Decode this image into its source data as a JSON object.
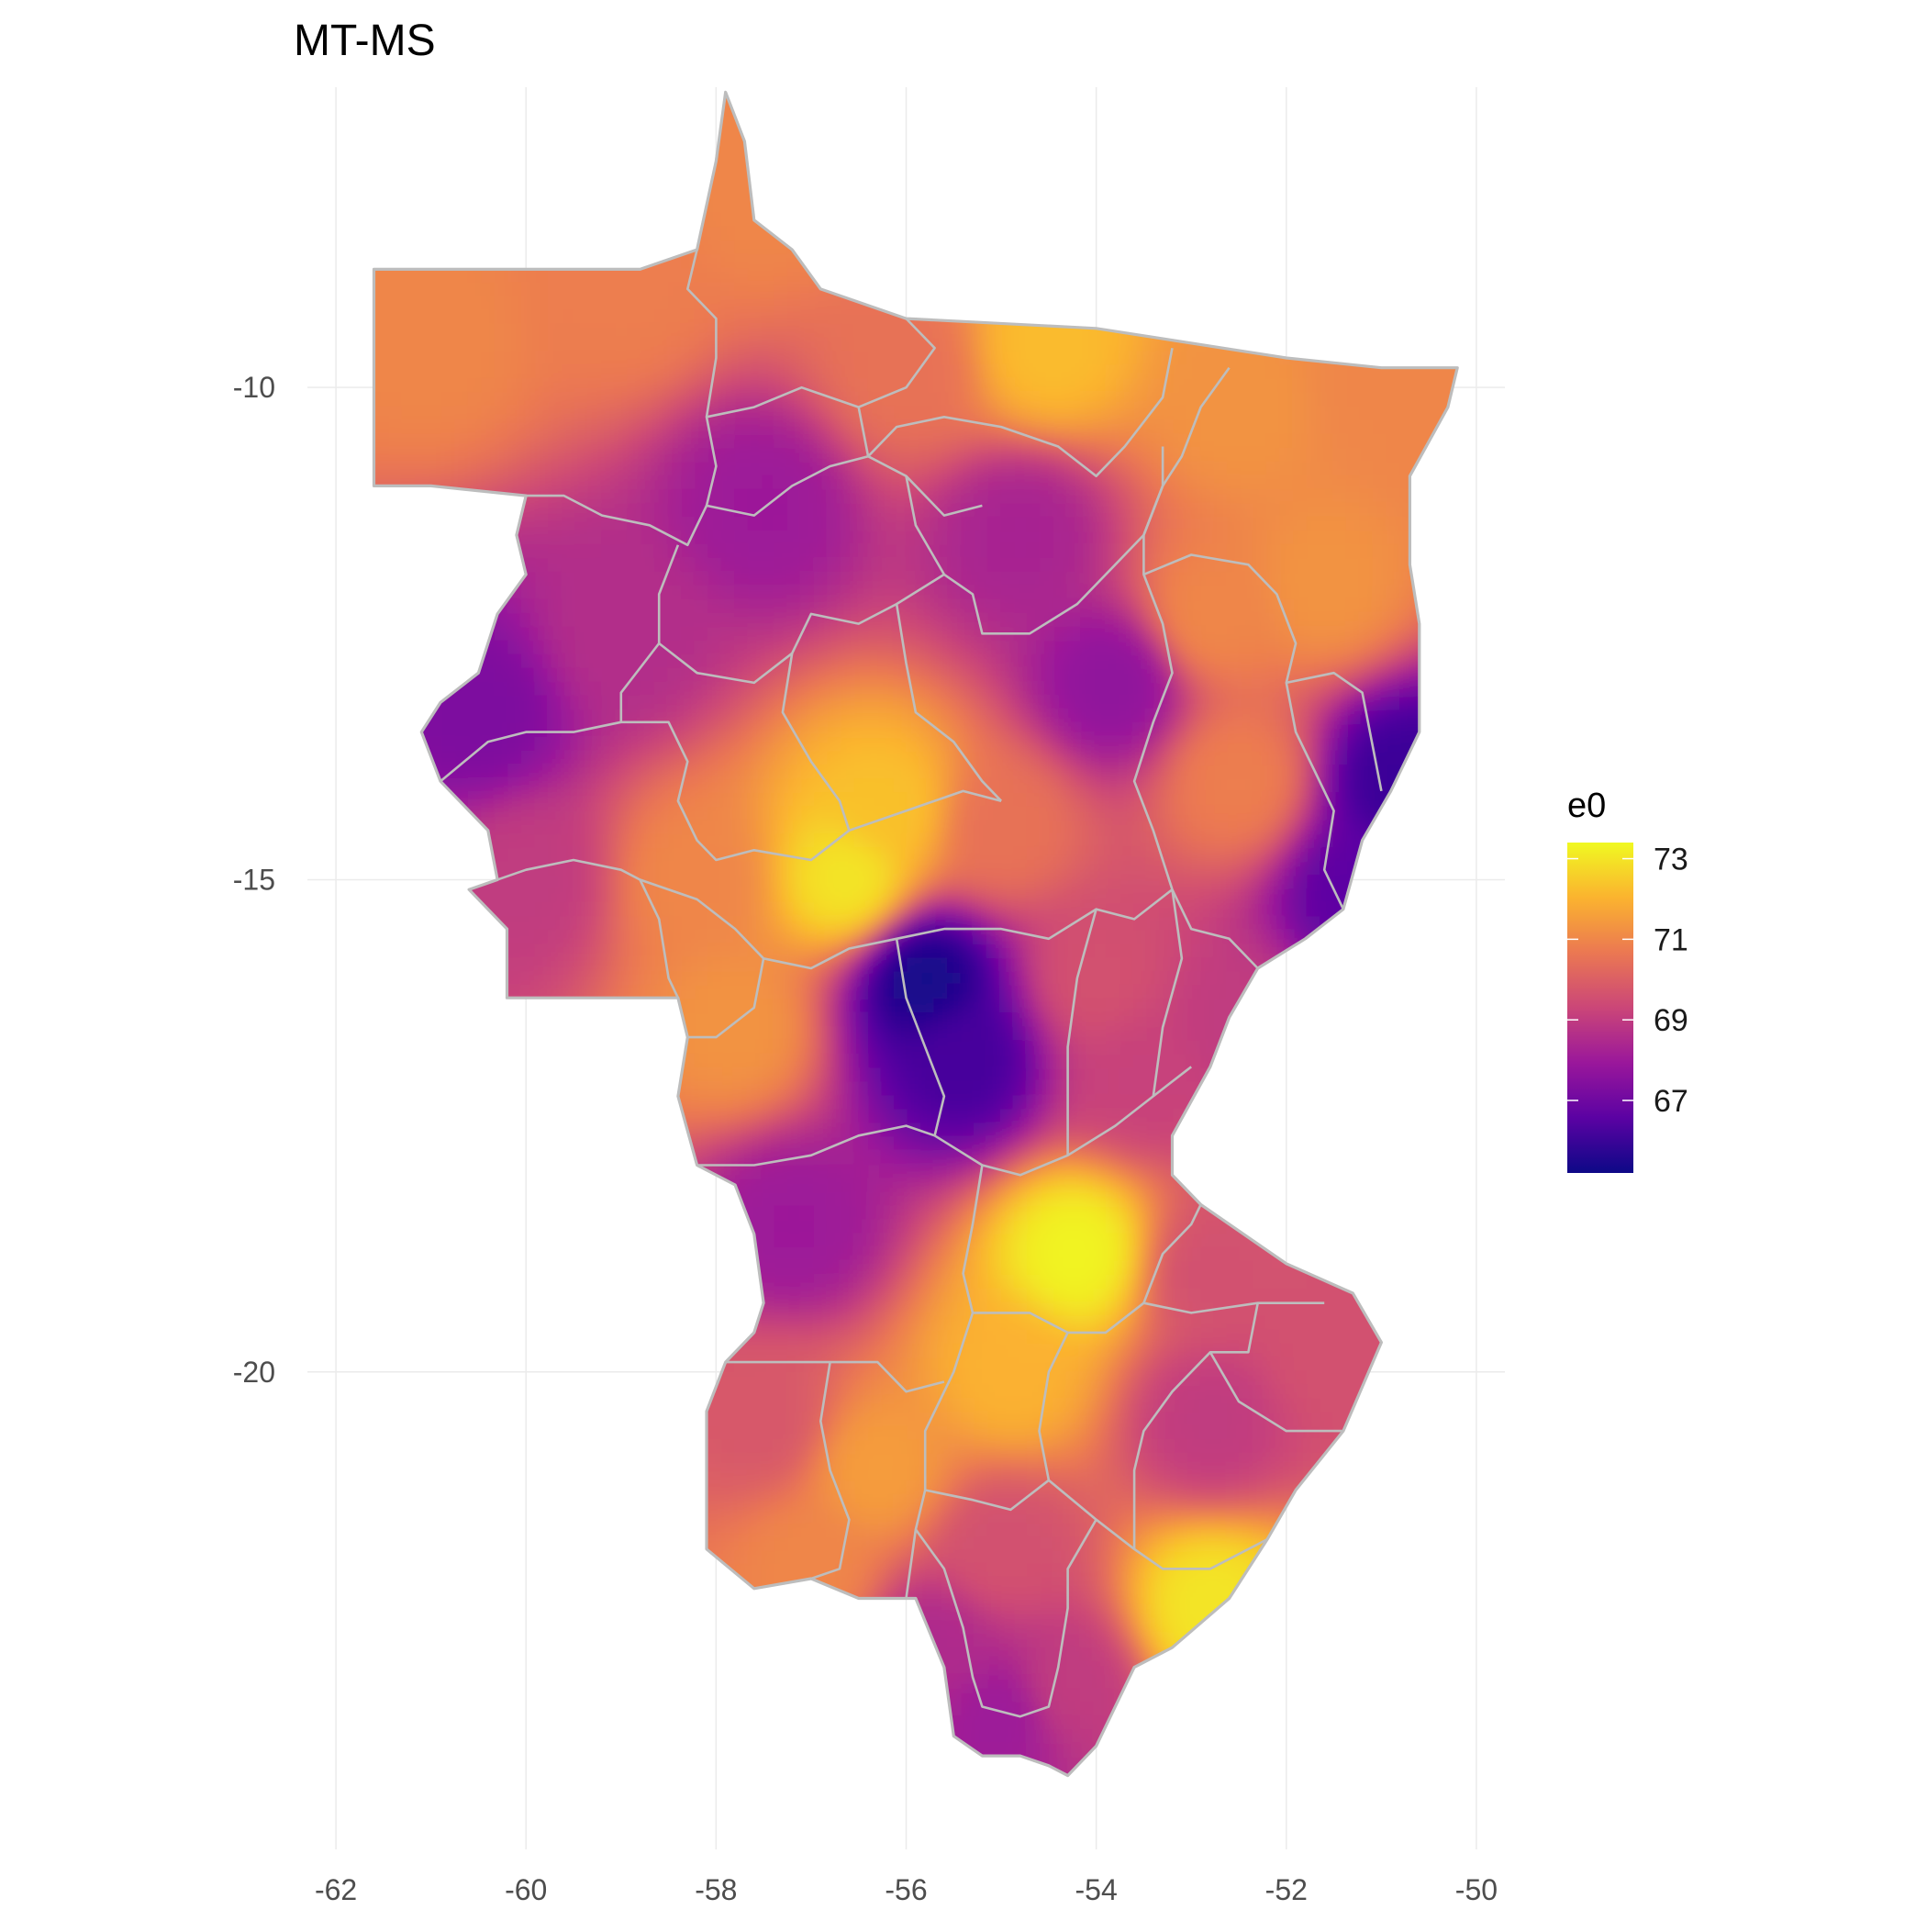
{
  "title": "MT-MS",
  "x_axis": {
    "ticks": [
      -62,
      -60,
      -58,
      -56,
      -54,
      -52,
      -50
    ],
    "range": [
      -62.3,
      -49.7
    ]
  },
  "y_axis": {
    "ticks": [
      -10,
      -15,
      -20
    ],
    "range": [
      -24.85,
      -6.95
    ]
  },
  "legend": {
    "title": "e0",
    "ticks": [
      73,
      71,
      69,
      67
    ],
    "range": [
      65.2,
      73.4
    ],
    "colors": [
      "#0d0887",
      "#5b02a3",
      "#9a179b",
      "#cb4678",
      "#eb7852",
      "#fbb32f",
      "#f0f921"
    ]
  },
  "colors": {
    "border": "#bdbdbd",
    "grid": "#ebebeb",
    "tick_text": "#4d4d4d",
    "title_text": "#000000"
  },
  "chart_data": {
    "type": "heatmap",
    "title": "MT-MS",
    "xlabel": "",
    "ylabel": "",
    "xlim": [
      -62.3,
      -49.7
    ],
    "ylim": [
      -24.85,
      -6.95
    ],
    "value_label": "e0",
    "value_range": [
      65.2,
      73.4
    ],
    "colorscale": "plasma",
    "grid": true,
    "legend_position": "right",
    "hotspots": [
      {
        "lon": -61.0,
        "lat": -9.5,
        "value": 71.0
      },
      {
        "lon": -59.0,
        "lat": -9.0,
        "value": 70.8
      },
      {
        "lon": -57.5,
        "lat": -8.0,
        "value": 71.0
      },
      {
        "lon": -56.0,
        "lat": -9.8,
        "value": 70.5
      },
      {
        "lon": -54.5,
        "lat": -9.6,
        "value": 72.2
      },
      {
        "lon": -52.5,
        "lat": -10.2,
        "value": 71.3
      },
      {
        "lon": -51.0,
        "lat": -10.0,
        "value": 71.0
      },
      {
        "lon": -51.6,
        "lat": -12.0,
        "value": 71.3
      },
      {
        "lon": -52.8,
        "lat": -12.3,
        "value": 71.0
      },
      {
        "lon": -57.5,
        "lat": -11.2,
        "value": 68.0
      },
      {
        "lon": -54.8,
        "lat": -11.5,
        "value": 68.3
      },
      {
        "lon": -60.5,
        "lat": -13.3,
        "value": 67.3
      },
      {
        "lon": -59.0,
        "lat": -12.5,
        "value": 68.6
      },
      {
        "lon": -56.2,
        "lat": -14.3,
        "value": 72.3
      },
      {
        "lon": -56.6,
        "lat": -15.0,
        "value": 73.0
      },
      {
        "lon": -55.0,
        "lat": -14.5,
        "value": 70.5
      },
      {
        "lon": -53.8,
        "lat": -13.0,
        "value": 67.7
      },
      {
        "lon": -52.5,
        "lat": -14.0,
        "value": 70.8
      },
      {
        "lon": -50.8,
        "lat": -14.0,
        "value": 66.0
      },
      {
        "lon": -51.2,
        "lat": -15.1,
        "value": 66.6
      },
      {
        "lon": -60.0,
        "lat": -15.0,
        "value": 69.0
      },
      {
        "lon": -58.2,
        "lat": -15.0,
        "value": 71.0
      },
      {
        "lon": -57.8,
        "lat": -16.5,
        "value": 71.3
      },
      {
        "lon": -55.8,
        "lat": -16.0,
        "value": 65.4
      },
      {
        "lon": -55.4,
        "lat": -16.8,
        "value": 66.2
      },
      {
        "lon": -54.0,
        "lat": -16.0,
        "value": 69.6
      },
      {
        "lon": -52.5,
        "lat": -16.5,
        "value": 69.0
      },
      {
        "lon": -53.5,
        "lat": -17.0,
        "value": 69.2
      },
      {
        "lon": -57.2,
        "lat": -18.5,
        "value": 68.0
      },
      {
        "lon": -54.2,
        "lat": -18.8,
        "value": 73.3
      },
      {
        "lon": -54.9,
        "lat": -20.0,
        "value": 72.0
      },
      {
        "lon": -52.8,
        "lat": -19.0,
        "value": 69.6
      },
      {
        "lon": -51.5,
        "lat": -19.8,
        "value": 69.6
      },
      {
        "lon": -52.8,
        "lat": -20.5,
        "value": 69.0
      },
      {
        "lon": -57.5,
        "lat": -20.5,
        "value": 69.8
      },
      {
        "lon": -56.3,
        "lat": -21.0,
        "value": 71.5
      },
      {
        "lon": -57.0,
        "lat": -22.0,
        "value": 71.0
      },
      {
        "lon": -55.0,
        "lat": -21.8,
        "value": 69.6
      },
      {
        "lon": -52.8,
        "lat": -22.4,
        "value": 73.0
      },
      {
        "lon": -55.0,
        "lat": -23.5,
        "value": 68.0
      },
      {
        "lon": -54.3,
        "lat": -23.2,
        "value": 69.0
      },
      {
        "lon": -55.7,
        "lat": -22.8,
        "value": 68.5
      }
    ]
  }
}
